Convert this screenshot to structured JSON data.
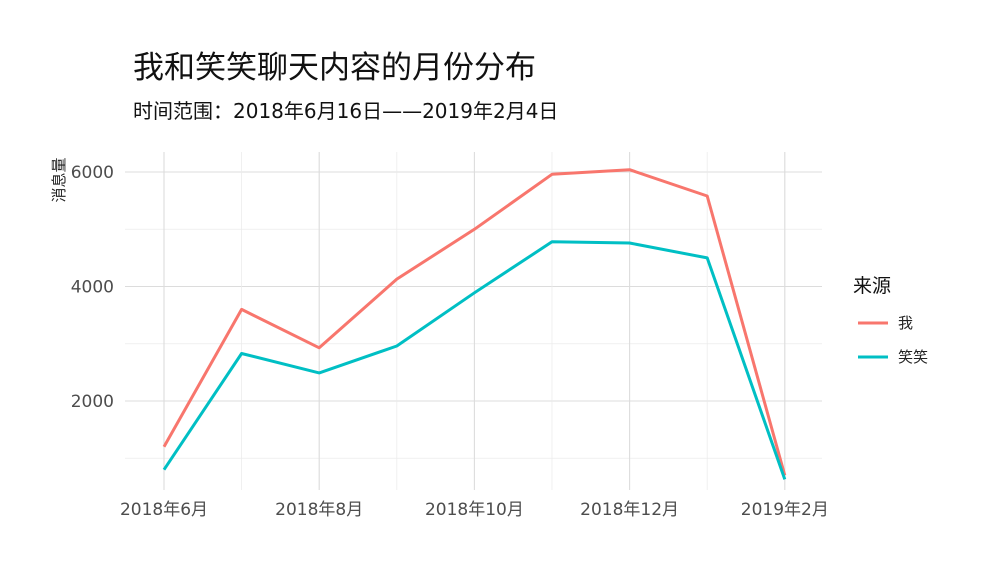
{
  "chart_data": {
    "type": "line",
    "title": "我和笑笑聊天内容的月份分布",
    "subtitle": "时间范围：2018年6月16日——2019年2月4日",
    "xlabel": "",
    "ylabel": "消息量",
    "x": [
      "2018-06",
      "2018-07",
      "2018-08",
      "2018-09",
      "2018-10",
      "2018-11",
      "2018-12",
      "2019-01",
      "2019-02"
    ],
    "x_tick_labels": [
      {
        "x": "2018-06",
        "label": "2018年6月"
      },
      {
        "x": "2018-08",
        "label": "2018年8月"
      },
      {
        "x": "2018-10",
        "label": "2018年10月"
      },
      {
        "x": "2018-12",
        "label": "2018年12月"
      },
      {
        "x": "2019-02",
        "label": "2019年2月"
      }
    ],
    "y_ticks": [
      2000,
      4000,
      6000
    ],
    "ylim": [
      500,
      6300
    ],
    "grid": true,
    "legend": {
      "title": "来源",
      "position": "right"
    },
    "series": [
      {
        "name": "我",
        "color": "#F8766D",
        "values": [
          1200,
          3600,
          2930,
          4130,
          5000,
          5960,
          6040,
          5580,
          700
        ]
      },
      {
        "name": "笑笑",
        "color": "#00BFC4",
        "values": [
          800,
          2830,
          2490,
          2960,
          3890,
          4780,
          4760,
          4500,
          630
        ]
      }
    ]
  }
}
